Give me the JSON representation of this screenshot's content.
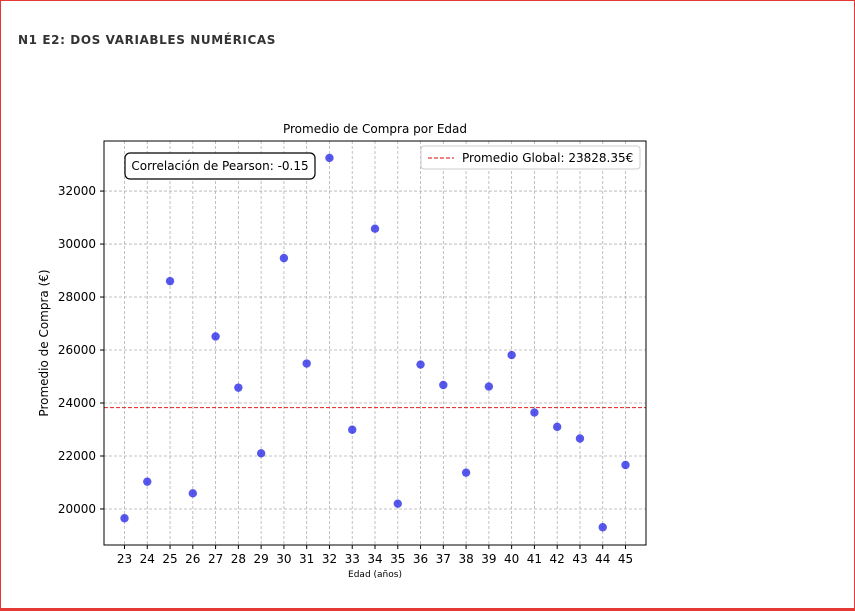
{
  "page": {
    "heading": "N1 E2: DOS VARIABLES NUMÉRICAS"
  },
  "chart_data": {
    "type": "scatter",
    "title": "Promedio de Compra por Edad",
    "xlabel": "Edad (años)",
    "ylabel": "Promedio de Compra (€)",
    "x": [
      23,
      24,
      25,
      26,
      27,
      28,
      29,
      30,
      31,
      32,
      33,
      34,
      35,
      36,
      37,
      38,
      39,
      40,
      41,
      42,
      43,
      44,
      45
    ],
    "y": [
      19650,
      21030,
      28600,
      20590,
      26510,
      24580,
      22100,
      29470,
      25490,
      33250,
      22990,
      30580,
      20200,
      25450,
      24680,
      21370,
      24620,
      25810,
      23640,
      23100,
      22660,
      19310,
      21660
    ],
    "x_ticks": [
      "23",
      "24",
      "25",
      "26",
      "27",
      "28",
      "29",
      "30",
      "31",
      "32",
      "33",
      "34",
      "35",
      "36",
      "37",
      "38",
      "39",
      "40",
      "41",
      "42",
      "43",
      "44",
      "45"
    ],
    "y_ticks": [
      "20000",
      "22000",
      "24000",
      "26000",
      "28000",
      "30000",
      "32000"
    ],
    "xlim": [
      22.1,
      45.9
    ],
    "ylim": [
      18640,
      33890
    ],
    "grid": true,
    "reference_line": {
      "value": 23828.35,
      "label": "Promedio Global: 23828.35€",
      "color": "#e53935"
    },
    "legend_position": "top-right",
    "annotation": "Correlación de Pearson: -0.15",
    "point_color": "#1f1fe6"
  }
}
